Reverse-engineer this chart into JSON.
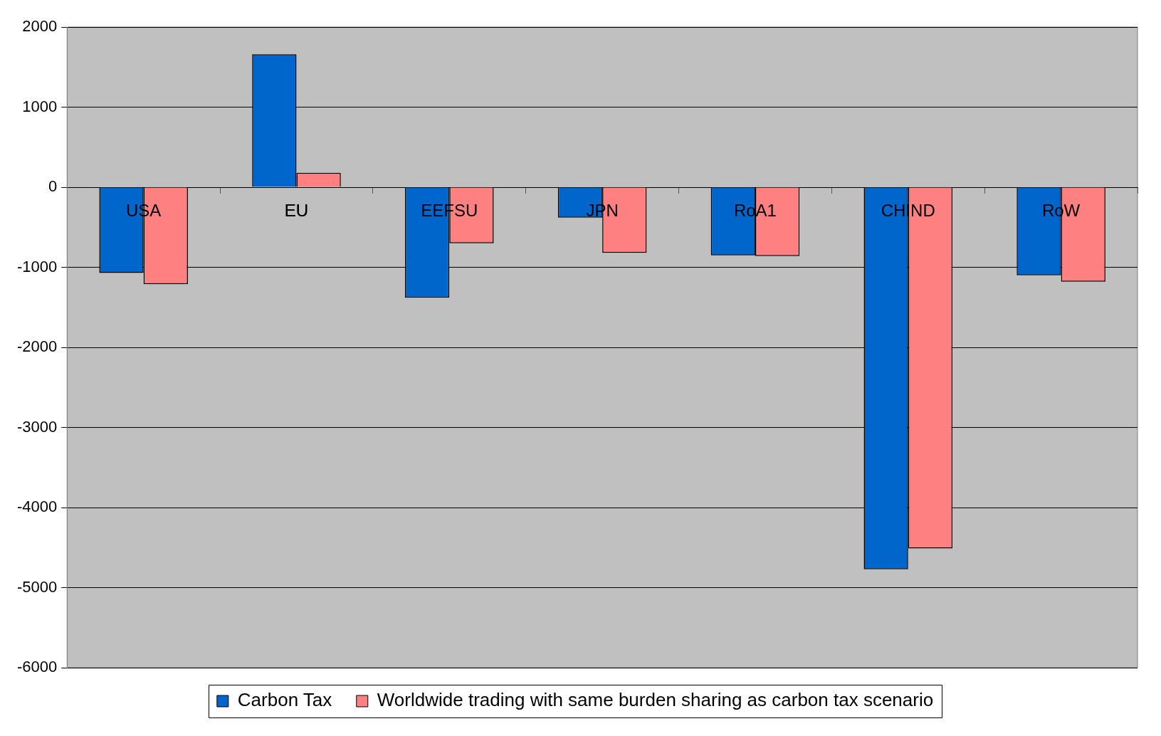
{
  "chart_data": {
    "type": "bar",
    "categories": [
      "USA",
      "EU",
      "EEFSU",
      "JPN",
      "RoA1",
      "CHIND",
      "RoW"
    ],
    "series": [
      {
        "name": "Carbon Tax",
        "color": "#0066cc",
        "values": [
          -1070,
          1660,
          -1380,
          -380,
          -850,
          -4770,
          -1100
        ]
      },
      {
        "name": "Worldwide trading with same burden sharing as carbon tax scenario",
        "color": "#ff8080",
        "values": [
          -1210,
          180,
          -700,
          -820,
          -860,
          -4510,
          -1180
        ]
      }
    ],
    "ylim": [
      -6000,
      2000
    ],
    "yticks": [
      -6000,
      -5000,
      -4000,
      -3000,
      -2000,
      -1000,
      0,
      1000,
      2000
    ],
    "grid": "y",
    "legend": "bottom"
  }
}
